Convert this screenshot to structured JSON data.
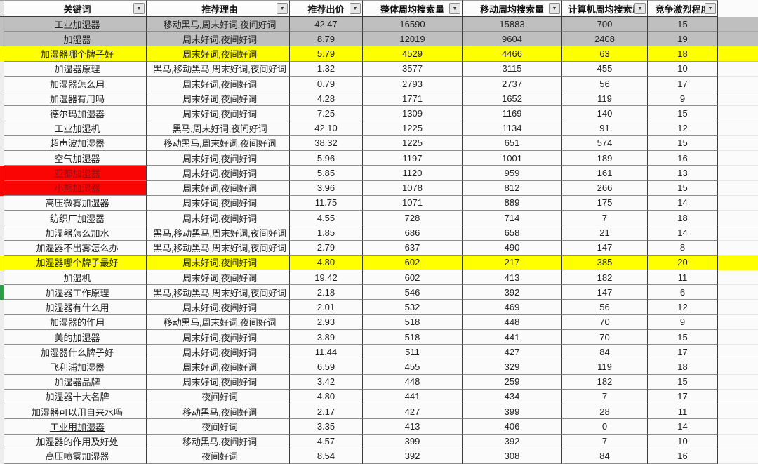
{
  "table": {
    "filter_icon": "▼",
    "columns": [
      {
        "label": "关键词"
      },
      {
        "label": "推荐理由"
      },
      {
        "label": "推荐出价"
      },
      {
        "label": "整体周均搜索量"
      },
      {
        "label": "移动周均搜索量"
      },
      {
        "label": "计算机周均搜索量"
      },
      {
        "label": "竞争激烈程度"
      }
    ],
    "rows": [
      {
        "keyword": "工业加湿器",
        "reason": "移动黑马,周末好词,夜间好词",
        "bid": "42.47",
        "overall": "16590",
        "mobile": "15883",
        "computer": "700",
        "competition": "15",
        "highlight": "gray",
        "underline": true
      },
      {
        "keyword": "加湿器",
        "reason": "周末好词,夜间好词",
        "bid": "8.79",
        "overall": "12019",
        "mobile": "9604",
        "computer": "2408",
        "competition": "19",
        "highlight": "gray",
        "underline": false
      },
      {
        "keyword": "加湿器哪个牌子好",
        "reason": "周末好词,夜间好词",
        "bid": "5.79",
        "overall": "4529",
        "mobile": "4466",
        "computer": "63",
        "competition": "18",
        "highlight": "yellow",
        "underline": false
      },
      {
        "keyword": "加湿器原理",
        "reason": "黑马,移动黑马,周末好词,夜间好词",
        "bid": "1.32",
        "overall": "3577",
        "mobile": "3115",
        "computer": "455",
        "competition": "10",
        "highlight": "none",
        "underline": false
      },
      {
        "keyword": "加湿器怎么用",
        "reason": "周末好词,夜间好词",
        "bid": "0.79",
        "overall": "2793",
        "mobile": "2737",
        "computer": "56",
        "competition": "17",
        "highlight": "none",
        "underline": false
      },
      {
        "keyword": "加湿器有用吗",
        "reason": "周末好词,夜间好词",
        "bid": "4.28",
        "overall": "1771",
        "mobile": "1652",
        "computer": "119",
        "competition": "9",
        "highlight": "none",
        "underline": false
      },
      {
        "keyword": "德尔玛加湿器",
        "reason": "周末好词,夜间好词",
        "bid": "7.25",
        "overall": "1309",
        "mobile": "1169",
        "computer": "140",
        "competition": "15",
        "highlight": "none",
        "underline": false
      },
      {
        "keyword": "工业加湿机",
        "reason": "黑马,周末好词,夜间好词",
        "bid": "42.10",
        "overall": "1225",
        "mobile": "1134",
        "computer": "91",
        "competition": "12",
        "highlight": "none",
        "underline": true
      },
      {
        "keyword": "超声波加湿器",
        "reason": "移动黑马,周末好词,夜间好词",
        "bid": "38.32",
        "overall": "1225",
        "mobile": "651",
        "computer": "574",
        "competition": "15",
        "highlight": "none",
        "underline": false
      },
      {
        "keyword": "空气加湿器",
        "reason": "周末好词,夜间好词",
        "bid": "5.96",
        "overall": "1197",
        "mobile": "1001",
        "computer": "189",
        "competition": "16",
        "highlight": "none",
        "underline": false
      },
      {
        "keyword": "亚都加湿器",
        "reason": "周末好词,夜间好词",
        "bid": "5.85",
        "overall": "1120",
        "mobile": "959",
        "computer": "161",
        "competition": "13",
        "highlight": "red",
        "underline": false
      },
      {
        "keyword": "小熊加湿器",
        "reason": "周末好词,夜间好词",
        "bid": "3.96",
        "overall": "1078",
        "mobile": "812",
        "computer": "266",
        "competition": "15",
        "highlight": "red",
        "underline": false
      },
      {
        "keyword": "高压微雾加湿器",
        "reason": "周末好词,夜间好词",
        "bid": "11.75",
        "overall": "1071",
        "mobile": "889",
        "computer": "175",
        "competition": "14",
        "highlight": "none",
        "underline": false
      },
      {
        "keyword": "纺织厂加湿器",
        "reason": "周末好词,夜间好词",
        "bid": "4.55",
        "overall": "728",
        "mobile": "714",
        "computer": "7",
        "competition": "18",
        "highlight": "none",
        "underline": false
      },
      {
        "keyword": "加湿器怎么加水",
        "reason": "黑马,移动黑马,周末好词,夜间好词",
        "bid": "1.85",
        "overall": "686",
        "mobile": "658",
        "computer": "21",
        "competition": "14",
        "highlight": "none",
        "underline": false
      },
      {
        "keyword": "加湿器不出雾怎么办",
        "reason": "黑马,移动黑马,周末好词,夜间好词",
        "bid": "2.79",
        "overall": "637",
        "mobile": "490",
        "computer": "147",
        "competition": "8",
        "highlight": "none",
        "underline": false
      },
      {
        "keyword": "加湿器哪个牌子最好",
        "reason": "周末好词,夜间好词",
        "bid": "4.80",
        "overall": "602",
        "mobile": "217",
        "computer": "385",
        "competition": "20",
        "highlight": "yellow",
        "underline": false
      },
      {
        "keyword": "加湿机",
        "reason": "周末好词,夜间好词",
        "bid": "19.42",
        "overall": "602",
        "mobile": "413",
        "computer": "182",
        "competition": "11",
        "highlight": "none",
        "underline": false
      },
      {
        "keyword": "加湿器工作原理",
        "reason": "黑马,移动黑马,周末好词,夜间好词",
        "bid": "2.18",
        "overall": "546",
        "mobile": "392",
        "computer": "147",
        "competition": "6",
        "highlight": "none",
        "underline": false,
        "marker": "green"
      },
      {
        "keyword": "加湿器有什么用",
        "reason": "周末好词,夜间好词",
        "bid": "2.01",
        "overall": "532",
        "mobile": "469",
        "computer": "56",
        "competition": "12",
        "highlight": "none",
        "underline": false
      },
      {
        "keyword": "加湿器的作用",
        "reason": "移动黑马,周末好词,夜间好词",
        "bid": "2.93",
        "overall": "518",
        "mobile": "448",
        "computer": "70",
        "competition": "9",
        "highlight": "none",
        "underline": false
      },
      {
        "keyword": "美的加湿器",
        "reason": "周末好词,夜间好词",
        "bid": "3.89",
        "overall": "518",
        "mobile": "441",
        "computer": "70",
        "competition": "15",
        "highlight": "none",
        "underline": false
      },
      {
        "keyword": "加湿器什么牌子好",
        "reason": "周末好词,夜间好词",
        "bid": "11.44",
        "overall": "511",
        "mobile": "427",
        "computer": "84",
        "competition": "17",
        "highlight": "none",
        "underline": false
      },
      {
        "keyword": "飞利浦加湿器",
        "reason": "周末好词,夜间好词",
        "bid": "6.59",
        "overall": "455",
        "mobile": "329",
        "computer": "119",
        "competition": "18",
        "highlight": "none",
        "underline": false
      },
      {
        "keyword": "加湿器品牌",
        "reason": "周末好词,夜间好词",
        "bid": "3.42",
        "overall": "448",
        "mobile": "259",
        "computer": "182",
        "competition": "15",
        "highlight": "none",
        "underline": false
      },
      {
        "keyword": "加湿器十大名牌",
        "reason": "夜间好词",
        "bid": "4.80",
        "overall": "441",
        "mobile": "434",
        "computer": "7",
        "competition": "17",
        "highlight": "none",
        "underline": false
      },
      {
        "keyword": "加湿器可以用自来水吗",
        "reason": "移动黑马,夜间好词",
        "bid": "2.17",
        "overall": "427",
        "mobile": "399",
        "computer": "28",
        "competition": "11",
        "highlight": "none",
        "underline": false
      },
      {
        "keyword": "工业用加湿器",
        "reason": "夜间好词",
        "bid": "3.35",
        "overall": "413",
        "mobile": "406",
        "computer": "0",
        "competition": "14",
        "highlight": "none",
        "underline": true
      },
      {
        "keyword": "加湿器的作用及好处",
        "reason": "移动黑马,夜间好词",
        "bid": "4.57",
        "overall": "399",
        "mobile": "392",
        "computer": "7",
        "competition": "10",
        "highlight": "none",
        "underline": false
      },
      {
        "keyword": "高压喷雾加湿器",
        "reason": "夜间好词",
        "bid": "8.54",
        "overall": "392",
        "mobile": "308",
        "computer": "84",
        "competition": "16",
        "highlight": "none",
        "underline": false
      }
    ],
    "colors": {
      "row_gray": "#bfbfbf",
      "row_yellow": "#ffff00",
      "row_red": "#fb0404",
      "red_text": "#8e1016",
      "grid_dark": "#3c3c3c",
      "grid_light": "#8d8d8d"
    }
  }
}
